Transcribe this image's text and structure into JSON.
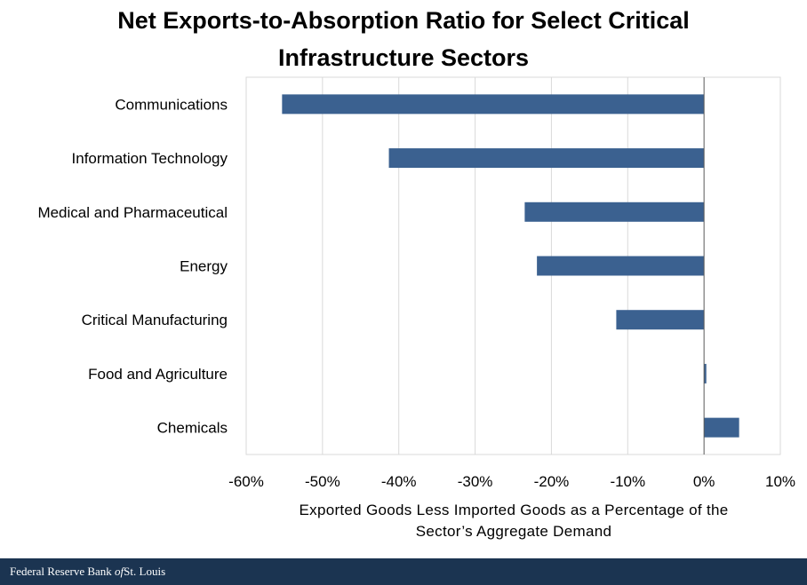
{
  "chart_data": {
    "type": "bar",
    "orientation": "horizontal",
    "title_lines": [
      "Net Exports-to-Absorption Ratio for Select Critical",
      "Infrastructure Sectors"
    ],
    "categories": [
      "Communications",
      "Information Technology",
      "Medical and Pharmaceutical",
      "Energy",
      "Critical Manufacturing",
      "Food and Agriculture",
      "Chemicals"
    ],
    "values": [
      -55.3,
      -41.3,
      -23.5,
      -21.9,
      -11.5,
      0.3,
      4.6
    ],
    "xlim": [
      -60,
      10
    ],
    "xticks": [
      -60,
      -50,
      -40,
      -30,
      -20,
      -10,
      0,
      10
    ],
    "xtick_labels": [
      "-60%",
      "-50%",
      "-40%",
      "-30%",
      "-20%",
      "-10%",
      "0%",
      "10%"
    ],
    "xlabel_lines": [
      "Exported Goods Less Imported Goods as a Percentage of the",
      "Sector’s Aggregate Demand"
    ],
    "grid": "vertical",
    "bar_color": "#3b6190"
  },
  "footer": {
    "prefix": "Federal Reserve Bank ",
    "of": "of",
    "suffix": "St. Louis",
    "bg_color": "#1b3451"
  }
}
